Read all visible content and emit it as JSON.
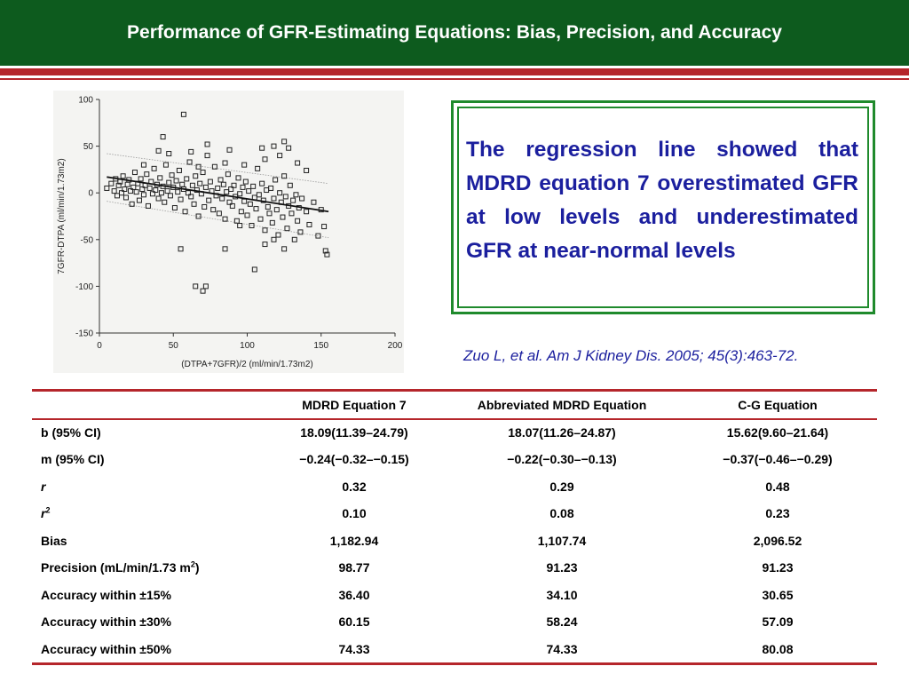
{
  "header": {
    "title": "Performance of GFR-Estimating Equations: Bias, Precision, and Accuracy"
  },
  "callout": {
    "text": "The regression line showed that MDRD equation 7 overestimated GFR at low levels and underestimated GFR at near-normal levels"
  },
  "citation": "Zuo L, et al. Am J Kidney Dis. 2005; 45(3):463-72.",
  "colors": {
    "title_bar": "#0d5b1e",
    "accent_red": "#b5262b",
    "callout_border": "#1f8a2c",
    "callout_text": "#1b1f9e"
  },
  "table": {
    "columns": [
      "",
      "MDRD Equation 7",
      "Abbreviated MDRD Equation",
      "C-G Equation"
    ],
    "rows": [
      {
        "label": "b (95% CI)",
        "values": [
          "18.09(11.39–24.79)",
          "18.07(11.26–24.87)",
          "15.62(9.60–21.64)"
        ]
      },
      {
        "label": "m (95% CI)",
        "values": [
          "−0.24(−0.32–−0.15)",
          "−0.22(−0.30–−0.13)",
          "−0.37(−0.46–−0.29)"
        ]
      },
      {
        "label": "r",
        "values": [
          "0.32",
          "0.29",
          "0.48"
        ]
      },
      {
        "label": "r",
        "label_sup": "2",
        "values": [
          "0.10",
          "0.08",
          "0.23"
        ]
      },
      {
        "label": "Bias",
        "values": [
          "1,182.94",
          "1,107.74",
          "2,096.52"
        ]
      },
      {
        "label": "Precision (mL/min/1.73 m",
        "label_sup": "2",
        "label_tail": ")",
        "values": [
          "98.77",
          "91.23",
          "91.23"
        ]
      },
      {
        "label": "Accuracy within ±15%",
        "values": [
          "36.40",
          "34.10",
          "30.65"
        ]
      },
      {
        "label": "Accuracy within ±30%",
        "values": [
          "60.15",
          "58.24",
          "57.09"
        ]
      },
      {
        "label": "Accuracy within ±50%",
        "values": [
          "74.33",
          "74.33",
          "80.08"
        ]
      }
    ]
  },
  "chart_data": {
    "type": "scatter",
    "xlabel": "(DTPA+7GFR)/2 (ml/min/1.73m2)",
    "ylabel": "7GFR-DTPA (ml/min/1.73m2)",
    "xlim": [
      0,
      200
    ],
    "ylim": [
      -150,
      100
    ],
    "x_ticks": [
      0,
      50,
      100,
      150,
      200
    ],
    "y_ticks": [
      100,
      50,
      0,
      -50,
      -100,
      -150
    ],
    "grid": false,
    "marker": "open-square",
    "regression_line": {
      "x": [
        5,
        155
      ],
      "y": [
        17,
        -20
      ]
    },
    "limit_lines": [
      {
        "x": [
          5,
          155
        ],
        "y": [
          42,
          10
        ]
      },
      {
        "x": [
          5,
          155
        ],
        "y": [
          -9,
          -48
        ]
      }
    ],
    "points": [
      [
        5,
        5
      ],
      [
        8,
        10
      ],
      [
        10,
        2
      ],
      [
        11,
        15
      ],
      [
        12,
        -3
      ],
      [
        13,
        8
      ],
      [
        14,
        12
      ],
      [
        15,
        0
      ],
      [
        16,
        18
      ],
      [
        17,
        4
      ],
      [
        18,
        -5
      ],
      [
        19,
        9
      ],
      [
        20,
        14
      ],
      [
        21,
        2
      ],
      [
        22,
        -12
      ],
      [
        23,
        6
      ],
      [
        24,
        22
      ],
      [
        25,
        1
      ],
      [
        26,
        10
      ],
      [
        27,
        -8
      ],
      [
        28,
        15
      ],
      [
        29,
        4
      ],
      [
        30,
        -2
      ],
      [
        31,
        8
      ],
      [
        32,
        20
      ],
      [
        33,
        -14
      ],
      [
        34,
        5
      ],
      [
        35,
        12
      ],
      [
        36,
        -1
      ],
      [
        37,
        26
      ],
      [
        38,
        3
      ],
      [
        39,
        9
      ],
      [
        40,
        -6
      ],
      [
        41,
        16
      ],
      [
        42,
        0
      ],
      [
        43,
        7
      ],
      [
        44,
        -10
      ],
      [
        45,
        30
      ],
      [
        46,
        2
      ],
      [
        47,
        11
      ],
      [
        48,
        -3
      ],
      [
        49,
        19
      ],
      [
        50,
        6
      ],
      [
        51,
        -16
      ],
      [
        52,
        13
      ],
      [
        53,
        1
      ],
      [
        54,
        24
      ],
      [
        55,
        -7
      ],
      [
        56,
        9
      ],
      [
        57,
        4
      ],
      [
        58,
        -20
      ],
      [
        59,
        15
      ],
      [
        60,
        0
      ],
      [
        61,
        33
      ],
      [
        62,
        -4
      ],
      [
        63,
        8
      ],
      [
        64,
        -12
      ],
      [
        65,
        18
      ],
      [
        66,
        3
      ],
      [
        67,
        -25
      ],
      [
        68,
        10
      ],
      [
        69,
        -1
      ],
      [
        70,
        22
      ],
      [
        71,
        -15
      ],
      [
        72,
        6
      ],
      [
        73,
        40
      ],
      [
        74,
        -8
      ],
      [
        75,
        12
      ],
      [
        76,
        2
      ],
      [
        77,
        -18
      ],
      [
        78,
        28
      ],
      [
        79,
        -3
      ],
      [
        80,
        5
      ],
      [
        81,
        -22
      ],
      [
        82,
        14
      ],
      [
        83,
        -6
      ],
      [
        84,
        9
      ],
      [
        85,
        -28
      ],
      [
        86,
        1
      ],
      [
        87,
        20
      ],
      [
        88,
        -10
      ],
      [
        89,
        4
      ],
      [
        90,
        -14
      ],
      [
        91,
        8
      ],
      [
        92,
        -4
      ],
      [
        93,
        -30
      ],
      [
        94,
        16
      ],
      [
        95,
        -1
      ],
      [
        96,
        -20
      ],
      [
        97,
        6
      ],
      [
        98,
        -9
      ],
      [
        99,
        12
      ],
      [
        100,
        -24
      ],
      [
        101,
        2
      ],
      [
        102,
        -12
      ],
      [
        103,
        -35
      ],
      [
        104,
        7
      ],
      [
        105,
        -5
      ],
      [
        106,
        -17
      ],
      [
        107,
        26
      ],
      [
        108,
        -2
      ],
      [
        109,
        -28
      ],
      [
        110,
        10
      ],
      [
        111,
        -8
      ],
      [
        112,
        -40
      ],
      [
        113,
        3
      ],
      [
        114,
        -15
      ],
      [
        115,
        -22
      ],
      [
        116,
        5
      ],
      [
        117,
        -32
      ],
      [
        118,
        -6
      ],
      [
        119,
        14
      ],
      [
        120,
        -18
      ],
      [
        121,
        -45
      ],
      [
        122,
        0
      ],
      [
        123,
        -10
      ],
      [
        124,
        -26
      ],
      [
        125,
        18
      ],
      [
        126,
        -4
      ],
      [
        127,
        -38
      ],
      [
        128,
        -14
      ],
      [
        129,
        8
      ],
      [
        130,
        -22
      ],
      [
        131,
        -8
      ],
      [
        132,
        -50
      ],
      [
        133,
        -2
      ],
      [
        134,
        -30
      ],
      [
        135,
        -16
      ],
      [
        136,
        -42
      ],
      [
        137,
        -6
      ],
      [
        140,
        -20
      ],
      [
        142,
        -34
      ],
      [
        145,
        -10
      ],
      [
        148,
        -46
      ],
      [
        150,
        -18
      ],
      [
        152,
        -36
      ],
      [
        153,
        -62
      ],
      [
        154,
        -66
      ],
      [
        30,
        30
      ],
      [
        40,
        45
      ],
      [
        43,
        60
      ],
      [
        47,
        42
      ],
      [
        57,
        84
      ],
      [
        62,
        44
      ],
      [
        67,
        28
      ],
      [
        73,
        52
      ],
      [
        85,
        32
      ],
      [
        88,
        46
      ],
      [
        98,
        30
      ],
      [
        110,
        48
      ],
      [
        112,
        36
      ],
      [
        118,
        50
      ],
      [
        122,
        40
      ],
      [
        125,
        55
      ],
      [
        128,
        48
      ],
      [
        134,
        32
      ],
      [
        140,
        24
      ],
      [
        55,
        -60
      ],
      [
        65,
        -100
      ],
      [
        70,
        -105
      ],
      [
        72,
        -100
      ],
      [
        85,
        -60
      ],
      [
        95,
        -35
      ],
      [
        105,
        -82
      ],
      [
        112,
        -55
      ],
      [
        118,
        -50
      ],
      [
        125,
        -60
      ]
    ]
  }
}
